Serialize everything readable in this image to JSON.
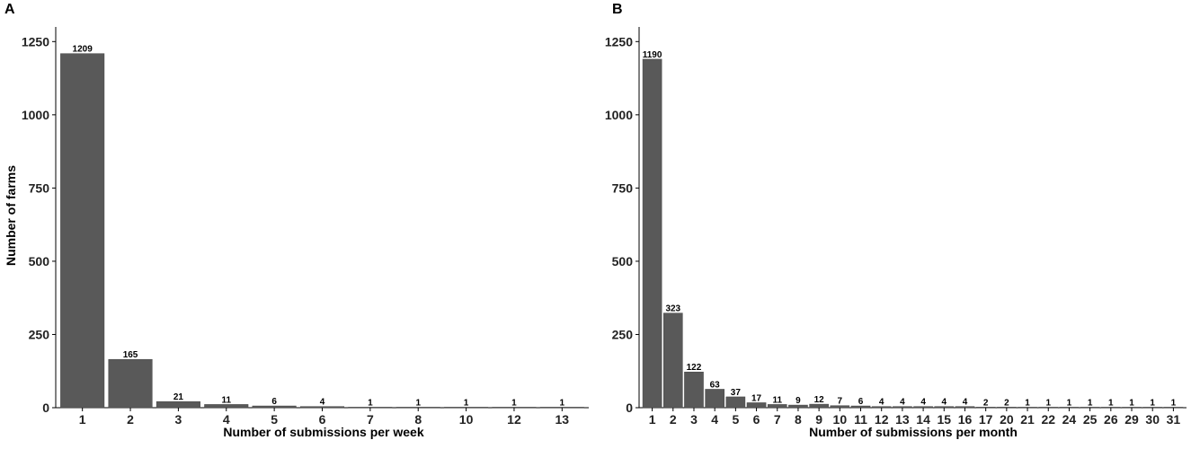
{
  "chart_data": [
    {
      "type": "bar",
      "panel_label": "A",
      "title": "",
      "xlabel": "Number of submissions per week",
      "ylabel": "Number of farms",
      "categories": [
        "1",
        "2",
        "3",
        "4",
        "5",
        "6",
        "7",
        "8",
        "10",
        "12",
        "13"
      ],
      "values": [
        1209,
        165,
        21,
        11,
        6,
        4,
        1,
        1,
        1,
        1,
        1
      ],
      "data_labels": [
        "1209",
        "165",
        "21",
        "11",
        "6",
        "4",
        "1",
        "1",
        "1",
        "1",
        "1"
      ],
      "ylim": [
        0,
        1300
      ],
      "yticks": [
        0,
        250,
        500,
        750,
        1000,
        1250
      ],
      "bar_color": "#595959",
      "grid": false
    },
    {
      "type": "bar",
      "panel_label": "B",
      "title": "",
      "xlabel": "Number of submissions per month",
      "ylabel": "",
      "categories": [
        "1",
        "2",
        "3",
        "4",
        "5",
        "6",
        "7",
        "8",
        "9",
        "10",
        "11",
        "12",
        "13",
        "14",
        "15",
        "16",
        "17",
        "20",
        "21",
        "22",
        "24",
        "25",
        "26",
        "29",
        "30",
        "31"
      ],
      "values": [
        1190,
        323,
        122,
        63,
        37,
        17,
        11,
        9,
        12,
        7,
        6,
        4,
        4,
        4,
        4,
        4,
        2,
        2,
        1,
        1,
        1,
        1,
        1,
        1,
        1,
        1
      ],
      "data_labels": [
        "1190",
        "323",
        "122",
        "63",
        "37",
        "17",
        "11",
        "9",
        "12",
        "7",
        "6",
        "4",
        "4",
        "4",
        "4",
        "4",
        "2",
        "2",
        "1",
        "1",
        "1",
        "1",
        "1",
        "1",
        "1",
        "1"
      ],
      "ylim": [
        0,
        1300
      ],
      "yticks": [
        0,
        250,
        500,
        750,
        1000,
        1250
      ],
      "bar_color": "#595959",
      "grid": false
    }
  ]
}
